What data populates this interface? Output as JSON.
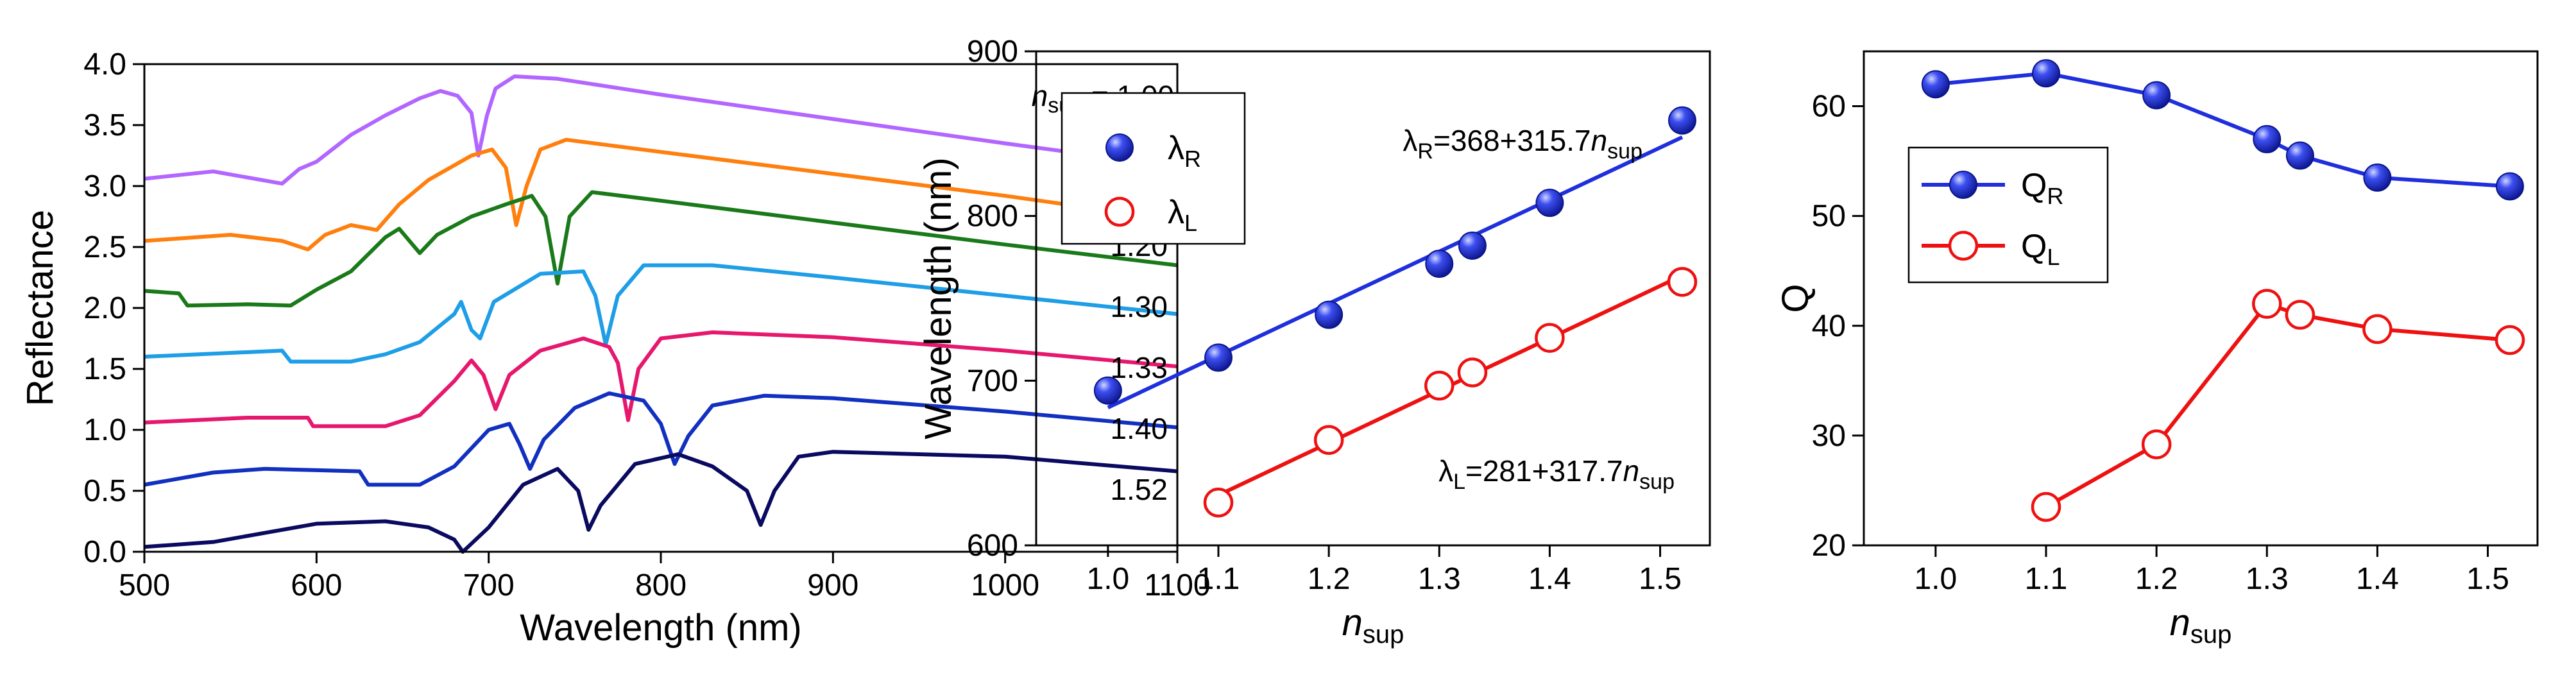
{
  "chart_data": [
    {
      "type": "line",
      "xlabel": "Wavelength (nm)",
      "ylabel": "Reflectance",
      "xlim": [
        500,
        1100
      ],
      "ylim": [
        0,
        4.0
      ],
      "x_ticks": [
        500,
        600,
        700,
        800,
        900,
        1000,
        1100
      ],
      "y_ticks": [
        0.0,
        0.5,
        1.0,
        1.5,
        2.0,
        2.5,
        3.0,
        3.5,
        4.0
      ],
      "x_tick_labels": [
        "500",
        "600",
        "700",
        "800",
        "900",
        "1000",
        "1100"
      ],
      "y_tick_labels": [
        "0.0",
        "0.5",
        "1.0",
        "1.5",
        "2.0",
        "2.5",
        "3.0",
        "3.5",
        "4.0"
      ],
      "annotation_prefix": "n",
      "annotation_sub": "sup",
      "annotation_eq": " = 1.00",
      "series": [
        {
          "label": "1.00",
          "color": "#b266ff",
          "offset": 3.0,
          "points": [
            [
              500,
              3.06
            ],
            [
              540,
              3.12
            ],
            [
              560,
              3.07
            ],
            [
              580,
              3.02
            ],
            [
              590,
              3.14
            ],
            [
              600,
              3.2
            ],
            [
              620,
              3.42
            ],
            [
              640,
              3.58
            ],
            [
              660,
              3.72
            ],
            [
              672,
              3.78
            ],
            [
              682,
              3.74
            ],
            [
              690,
              3.6
            ],
            [
              694,
              3.25
            ],
            [
              699,
              3.58
            ],
            [
              704,
              3.8
            ],
            [
              715,
              3.9
            ],
            [
              740,
              3.88
            ],
            [
              800,
              3.75
            ],
            [
              900,
              3.55
            ],
            [
              1000,
              3.35
            ],
            [
              1100,
              3.16
            ]
          ]
        },
        {
          "label": "1.10",
          "color": "#ff7f0e",
          "offset": 2.5,
          "points": [
            [
              500,
              2.55
            ],
            [
              550,
              2.6
            ],
            [
              580,
              2.55
            ],
            [
              595,
              2.48
            ],
            [
              605,
              2.6
            ],
            [
              620,
              2.68
            ],
            [
              635,
              2.64
            ],
            [
              648,
              2.85
            ],
            [
              665,
              3.05
            ],
            [
              690,
              3.25
            ],
            [
              702,
              3.3
            ],
            [
              710,
              3.15
            ],
            [
              716,
              2.68
            ],
            [
              722,
              3.0
            ],
            [
              730,
              3.3
            ],
            [
              745,
              3.38
            ],
            [
              800,
              3.28
            ],
            [
              900,
              3.1
            ],
            [
              1000,
              2.92
            ],
            [
              1100,
              2.72
            ]
          ]
        },
        {
          "label": "1.20",
          "color": "#1a7a1a",
          "offset": 2.0,
          "points": [
            [
              500,
              2.14
            ],
            [
              520,
              2.12
            ],
            [
              525,
              2.02
            ],
            [
              560,
              2.03
            ],
            [
              585,
              2.02
            ],
            [
              600,
              2.15
            ],
            [
              620,
              2.3
            ],
            [
              640,
              2.58
            ],
            [
              648,
              2.65
            ],
            [
              660,
              2.45
            ],
            [
              670,
              2.6
            ],
            [
              690,
              2.75
            ],
            [
              710,
              2.85
            ],
            [
              725,
              2.92
            ],
            [
              733,
              2.75
            ],
            [
              740,
              2.2
            ],
            [
              747,
              2.75
            ],
            [
              760,
              2.95
            ],
            [
              800,
              2.88
            ],
            [
              900,
              2.7
            ],
            [
              1000,
              2.52
            ],
            [
              1100,
              2.35
            ]
          ]
        },
        {
          "label": "1.30",
          "color": "#1e9ee6",
          "offset": 1.5,
          "points": [
            [
              500,
              1.6
            ],
            [
              580,
              1.65
            ],
            [
              585,
              1.56
            ],
            [
              620,
              1.56
            ],
            [
              640,
              1.62
            ],
            [
              660,
              1.72
            ],
            [
              680,
              1.95
            ],
            [
              684,
              2.05
            ],
            [
              690,
              1.82
            ],
            [
              695,
              1.75
            ],
            [
              703,
              2.05
            ],
            [
              730,
              2.28
            ],
            [
              755,
              2.3
            ],
            [
              762,
              2.1
            ],
            [
              768,
              1.7
            ],
            [
              775,
              2.1
            ],
            [
              790,
              2.35
            ],
            [
              830,
              2.35
            ],
            [
              900,
              2.25
            ],
            [
              1000,
              2.1
            ],
            [
              1100,
              1.95
            ]
          ]
        },
        {
          "label": "1.33",
          "color": "#e6186e",
          "offset": 1.0,
          "points": [
            [
              500,
              1.06
            ],
            [
              560,
              1.1
            ],
            [
              595,
              1.1
            ],
            [
              598,
              1.03
            ],
            [
              640,
              1.03
            ],
            [
              660,
              1.12
            ],
            [
              680,
              1.4
            ],
            [
              690,
              1.57
            ],
            [
              697,
              1.45
            ],
            [
              704,
              1.17
            ],
            [
              712,
              1.45
            ],
            [
              730,
              1.65
            ],
            [
              755,
              1.75
            ],
            [
              770,
              1.68
            ],
            [
              775,
              1.55
            ],
            [
              781,
              1.08
            ],
            [
              787,
              1.5
            ],
            [
              800,
              1.75
            ],
            [
              830,
              1.8
            ],
            [
              900,
              1.76
            ],
            [
              1000,
              1.65
            ],
            [
              1100,
              1.52
            ]
          ]
        },
        {
          "label": "1.40",
          "color": "#1230c0",
          "offset": 0.5,
          "points": [
            [
              500,
              0.55
            ],
            [
              540,
              0.65
            ],
            [
              570,
              0.68
            ],
            [
              625,
              0.66
            ],
            [
              630,
              0.55
            ],
            [
              660,
              0.55
            ],
            [
              680,
              0.7
            ],
            [
              700,
              1.0
            ],
            [
              712,
              1.05
            ],
            [
              718,
              0.88
            ],
            [
              724,
              0.68
            ],
            [
              732,
              0.92
            ],
            [
              750,
              1.18
            ],
            [
              770,
              1.3
            ],
            [
              790,
              1.24
            ],
            [
              800,
              1.05
            ],
            [
              808,
              0.72
            ],
            [
              816,
              0.95
            ],
            [
              830,
              1.2
            ],
            [
              860,
              1.28
            ],
            [
              900,
              1.26
            ],
            [
              1000,
              1.15
            ],
            [
              1100,
              1.02
            ]
          ]
        },
        {
          "label": "1.52",
          "color": "#0a0a60",
          "offset": 0.0,
          "points": [
            [
              500,
              0.04
            ],
            [
              540,
              0.08
            ],
            [
              580,
              0.18
            ],
            [
              600,
              0.23
            ],
            [
              640,
              0.25
            ],
            [
              665,
              0.2
            ],
            [
              680,
              0.1
            ],
            [
              685,
              0.0
            ],
            [
              700,
              0.2
            ],
            [
              720,
              0.55
            ],
            [
              740,
              0.68
            ],
            [
              752,
              0.5
            ],
            [
              758,
              0.18
            ],
            [
              765,
              0.38
            ],
            [
              785,
              0.72
            ],
            [
              810,
              0.8
            ],
            [
              830,
              0.7
            ],
            [
              850,
              0.5
            ],
            [
              858,
              0.22
            ],
            [
              866,
              0.5
            ],
            [
              880,
              0.78
            ],
            [
              900,
              0.82
            ],
            [
              1000,
              0.78
            ],
            [
              1100,
              0.66
            ]
          ]
        }
      ]
    },
    {
      "type": "scatter",
      "xlabel_main": "n",
      "xlabel_sub": "sup",
      "ylabel": "Wavelength (nm)",
      "xlim": [
        0.935,
        1.545
      ],
      "ylim": [
        600,
        900
      ],
      "x_ticks": [
        1.0,
        1.1,
        1.2,
        1.3,
        1.4,
        1.5
      ],
      "y_ticks": [
        600,
        700,
        800,
        900
      ],
      "x_tick_labels": [
        "1.0",
        "1.1",
        "1.2",
        "1.3",
        "1.4",
        "1.5"
      ],
      "y_tick_labels": [
        "600",
        "700",
        "800",
        "900"
      ],
      "series": [
        {
          "name_main": "λ",
          "name_sub": "R",
          "color": "#1f2fdc",
          "marker": "filled-circle",
          "x": [
            1.0,
            1.1,
            1.2,
            1.3,
            1.33,
            1.4,
            1.52
          ],
          "y": [
            694,
            714,
            740,
            771,
            782,
            808,
            858
          ]
        },
        {
          "name_main": "λ",
          "name_sub": "L",
          "color": "#ee1111",
          "marker": "open-circle",
          "x": [
            1.1,
            1.2,
            1.3,
            1.33,
            1.4,
            1.52
          ],
          "y": [
            626,
            664,
            697,
            705,
            726,
            760
          ]
        }
      ],
      "fits": [
        {
          "color": "#1f2fdc",
          "intercept": 368,
          "slope": 315.7,
          "x_range": [
            1.0,
            1.52
          ],
          "label_main": "λ",
          "label_sub1": "R",
          "label_mid": "=368+315.7",
          "label_n": "n",
          "label_sub2": "sup"
        },
        {
          "color": "#ee1111",
          "intercept": 281,
          "slope": 317.7,
          "x_range": [
            1.1,
            1.52
          ],
          "label_main": "λ",
          "label_sub1": "L",
          "label_mid": "=281+317.7",
          "label_n": "n",
          "label_sub2": "sup"
        }
      ],
      "legend_position": "top-left"
    },
    {
      "type": "line",
      "xlabel_main": "n",
      "xlabel_sub": "sup",
      "ylabel": "Q",
      "xlim": [
        0.935,
        1.545
      ],
      "ylim": [
        20,
        65
      ],
      "x_ticks": [
        1.0,
        1.1,
        1.2,
        1.3,
        1.4,
        1.5
      ],
      "y_ticks": [
        20,
        30,
        40,
        50,
        60
      ],
      "x_tick_labels": [
        "1.0",
        "1.1",
        "1.2",
        "1.3",
        "1.4",
        "1.5"
      ],
      "y_tick_labels": [
        "20",
        "30",
        "40",
        "50",
        "60"
      ],
      "series": [
        {
          "name_main": "Q",
          "name_sub": "R",
          "color": "#1f2fdc",
          "marker": "filled-circle",
          "x": [
            1.0,
            1.1,
            1.2,
            1.3,
            1.33,
            1.4,
            1.52
          ],
          "y": [
            62.0,
            63.0,
            61.0,
            57.0,
            55.5,
            53.5,
            52.7
          ]
        },
        {
          "name_main": "Q",
          "name_sub": "L",
          "color": "#ee1111",
          "marker": "open-circle",
          "x": [
            1.1,
            1.2,
            1.3,
            1.33,
            1.4,
            1.52
          ],
          "y": [
            23.5,
            29.2,
            42.0,
            41.0,
            39.7,
            38.7
          ]
        }
      ],
      "legend_position": "left"
    }
  ]
}
